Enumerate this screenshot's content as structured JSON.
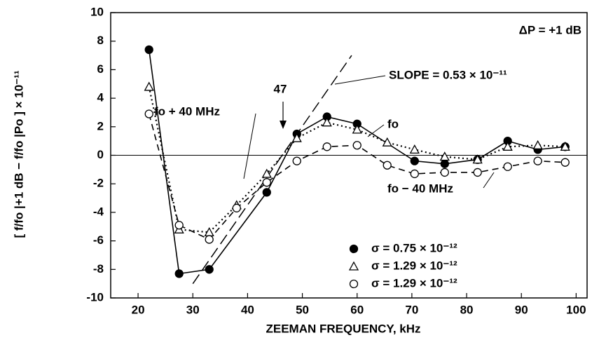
{
  "chart_data": {
    "type": "line",
    "x_label": "ZEEMAN FREQUENCY, kHz",
    "y_label": "[ f/fo |+1 dB − f/fo |Po ] × 10⁻¹¹",
    "xlim": [
      15,
      102
    ],
    "ylim": [
      -10,
      10
    ],
    "xticks": [
      20,
      30,
      40,
      50,
      60,
      70,
      80,
      90,
      100
    ],
    "yticks": [
      -10,
      -8,
      -6,
      -4,
      -2,
      0,
      2,
      4,
      6,
      8,
      10
    ],
    "annotations": {
      "delta_p": "ΔP = +1 dB",
      "slope": "SLOPE = 0.53 × 10⁻¹¹",
      "arrow": "47",
      "plus": "fo + 40 MHz",
      "center": "fo",
      "minus": "fo − 40 MHz"
    },
    "slope_line": {
      "x": [
        30,
        59
      ],
      "y": [
        -9,
        7
      ]
    },
    "series": [
      {
        "name": "σ = 0.75 × 10⁻¹²",
        "color": "#000000",
        "style": "solid",
        "marker": "filled-circle",
        "x": [
          22,
          27.5,
          33,
          43.5,
          49,
          54.5,
          60,
          70.5,
          76,
          82,
          87.5,
          93,
          98
        ],
        "values": [
          7.4,
          -8.3,
          -8.0,
          -2.6,
          1.5,
          2.7,
          2.2,
          -0.4,
          -0.6,
          -0.3,
          1.0,
          0.4,
          0.6
        ]
      },
      {
        "name": "σ = 1.29 × 10⁻¹²",
        "color": "#000000",
        "style": "dotted",
        "marker": "triangle",
        "x": [
          22,
          27.5,
          33,
          38,
          43.5,
          49,
          54.5,
          60,
          65.5,
          70.5,
          76,
          82,
          87.5,
          93,
          98
        ],
        "values": [
          4.8,
          -5.2,
          -5.4,
          -3.5,
          -1.3,
          1.2,
          2.3,
          1.8,
          0.9,
          0.4,
          -0.1,
          -0.3,
          0.6,
          0.7,
          0.6
        ]
      },
      {
        "name": "σ = 1.29 × 10⁻¹²",
        "color": "#000000",
        "style": "dashed",
        "marker": "circle",
        "x": [
          22,
          27.5,
          33,
          38,
          43.5,
          49,
          54.5,
          60,
          65.5,
          70.5,
          76,
          82,
          87.5,
          93,
          98
        ],
        "values": [
          2.9,
          -4.9,
          -5.9,
          -3.7,
          -1.9,
          -0.4,
          0.6,
          0.7,
          -0.7,
          -1.3,
          -1.2,
          -1.2,
          -0.8,
          -0.4,
          -0.5
        ]
      }
    ]
  }
}
